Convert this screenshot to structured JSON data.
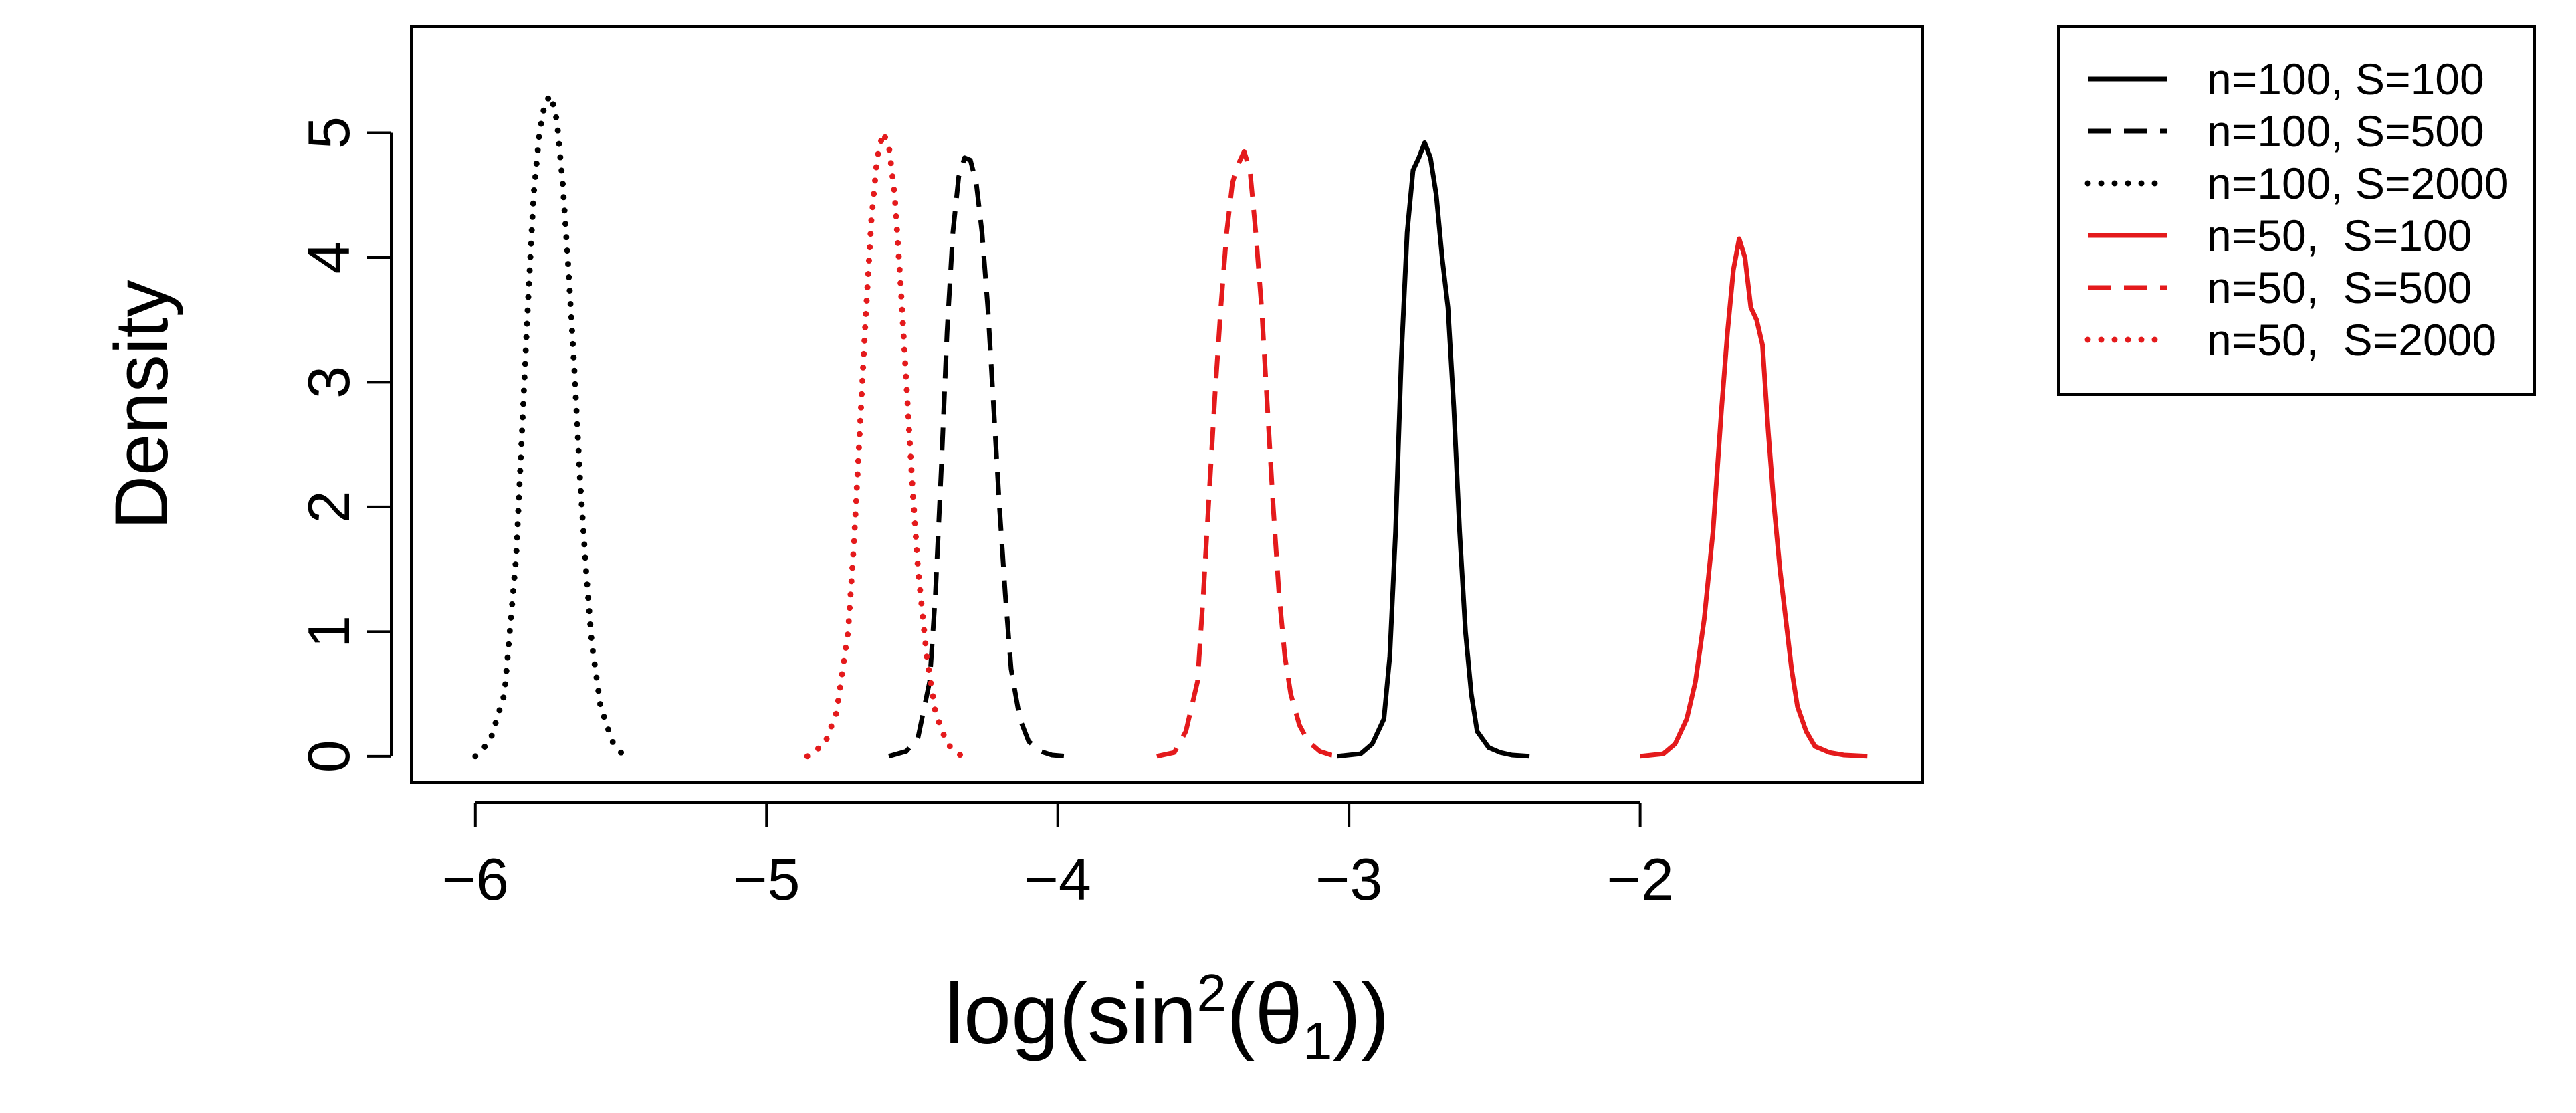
{
  "chart_data": {
    "type": "line",
    "title": "",
    "xlabel": "log(sin²(θ₁))",
    "xlabel_parts": {
      "pre": "log(sin",
      "sup": "2",
      "mid": "(θ",
      "sub": "1",
      "post": "))"
    },
    "ylabel": "Density",
    "xlim": [
      -6.22,
      -1.03
    ],
    "ylim": [
      -0.21,
      5.85
    ],
    "xticks": [
      -6,
      -5,
      -4,
      -3,
      -2
    ],
    "xtick_labels": [
      "−6",
      "−5",
      "−4",
      "−3",
      "−2"
    ],
    "yticks": [
      0,
      1,
      2,
      3,
      4,
      5
    ],
    "ytick_labels": [
      "0",
      "1",
      "2",
      "3",
      "4",
      "5"
    ],
    "grid": false,
    "legend_position": "outside-top-right",
    "series": [
      {
        "name": "n=100, S=100",
        "color": "#000000",
        "linestyle": "solid",
        "x": [
          -3.04,
          -2.96,
          -2.92,
          -2.88,
          -2.86,
          -2.84,
          -2.82,
          -2.8,
          -2.78,
          -2.76,
          -2.74,
          -2.72,
          -2.7,
          -2.68,
          -2.66,
          -2.64,
          -2.62,
          -2.6,
          -2.58,
          -2.56,
          -2.52,
          -2.48,
          -2.44,
          -2.38
        ],
        "y": [
          0,
          0.02,
          0.1,
          0.3,
          0.8,
          1.8,
          3.2,
          4.2,
          4.7,
          4.8,
          4.92,
          4.8,
          4.5,
          4.0,
          3.6,
          2.8,
          1.8,
          1.0,
          0.5,
          0.2,
          0.07,
          0.03,
          0.01,
          0
        ]
      },
      {
        "name": "n=100, S=500",
        "color": "#000000",
        "linestyle": "dashed",
        "x": [
          -4.58,
          -4.52,
          -4.48,
          -4.44,
          -4.42,
          -4.4,
          -4.38,
          -4.36,
          -4.34,
          -4.32,
          -4.3,
          -4.28,
          -4.26,
          -4.24,
          -4.22,
          -4.2,
          -4.18,
          -4.16,
          -4.13,
          -4.1,
          -4.06,
          -4.02,
          -3.97
        ],
        "y": [
          0,
          0.04,
          0.15,
          0.6,
          1.3,
          2.3,
          3.4,
          4.2,
          4.65,
          4.8,
          4.78,
          4.6,
          4.2,
          3.6,
          2.8,
          2.0,
          1.3,
          0.7,
          0.3,
          0.12,
          0.04,
          0.01,
          0
        ]
      },
      {
        "name": "n=100, S=2000",
        "color": "#000000",
        "linestyle": "dotted",
        "x": [
          -6.0,
          -5.95,
          -5.9,
          -5.86,
          -5.84,
          -5.82,
          -5.8,
          -5.78,
          -5.76,
          -5.74,
          -5.72,
          -5.7,
          -5.68,
          -5.66,
          -5.64,
          -5.62,
          -5.6,
          -5.57,
          -5.53,
          -5.49
        ],
        "y": [
          0,
          0.12,
          0.5,
          1.6,
          2.6,
          3.6,
          4.5,
          5.0,
          5.25,
          5.3,
          5.1,
          4.6,
          3.9,
          3.1,
          2.2,
          1.5,
          0.9,
          0.4,
          0.12,
          0
        ]
      },
      {
        "name": "n=50,  S=100",
        "color": "#e41a1c",
        "linestyle": "solid",
        "x": [
          -2.0,
          -1.92,
          -1.88,
          -1.84,
          -1.81,
          -1.78,
          -1.75,
          -1.72,
          -1.7,
          -1.68,
          -1.66,
          -1.64,
          -1.62,
          -1.6,
          -1.58,
          -1.56,
          -1.54,
          -1.52,
          -1.5,
          -1.48,
          -1.46,
          -1.43,
          -1.4,
          -1.35,
          -1.3,
          -1.22
        ],
        "y": [
          0,
          0.02,
          0.1,
          0.3,
          0.6,
          1.1,
          1.8,
          2.8,
          3.4,
          3.9,
          4.15,
          4.0,
          3.6,
          3.5,
          3.3,
          2.6,
          2.0,
          1.5,
          1.1,
          0.7,
          0.4,
          0.2,
          0.08,
          0.03,
          0.01,
          0
        ]
      },
      {
        "name": "n=50,  S=500",
        "color": "#e41a1c",
        "linestyle": "dashed",
        "x": [
          -3.66,
          -3.6,
          -3.56,
          -3.52,
          -3.5,
          -3.48,
          -3.46,
          -3.44,
          -3.42,
          -3.4,
          -3.38,
          -3.36,
          -3.34,
          -3.32,
          -3.3,
          -3.28,
          -3.26,
          -3.24,
          -3.22,
          -3.2,
          -3.17,
          -3.14,
          -3.1,
          -3.06,
          -3.02
        ],
        "y": [
          0,
          0.03,
          0.2,
          0.6,
          1.3,
          2.1,
          2.9,
          3.6,
          4.2,
          4.6,
          4.75,
          4.85,
          4.7,
          4.2,
          3.6,
          2.8,
          2.0,
          1.3,
          0.8,
          0.5,
          0.25,
          0.12,
          0.04,
          0.01,
          0
        ]
      },
      {
        "name": "n=50,  S=2000",
        "color": "#e41a1c",
        "linestyle": "dotted",
        "x": [
          -4.86,
          -4.8,
          -4.76,
          -4.72,
          -4.7,
          -4.68,
          -4.66,
          -4.64,
          -4.62,
          -4.6,
          -4.58,
          -4.56,
          -4.54,
          -4.52,
          -4.5,
          -4.48,
          -4.45,
          -4.42,
          -4.38,
          -4.33
        ],
        "y": [
          0,
          0.1,
          0.35,
          1.0,
          1.7,
          2.6,
          3.5,
          4.3,
          4.8,
          5.0,
          4.9,
          4.5,
          3.8,
          3.0,
          2.2,
          1.5,
          0.8,
          0.35,
          0.1,
          0
        ]
      }
    ]
  }
}
